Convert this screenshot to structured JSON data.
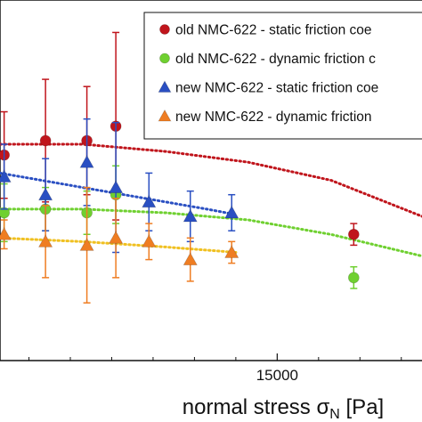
{
  "chart_data": {
    "type": "scatter",
    "xlabel": "normal stress σ",
    "xlabel_subscript": "N",
    "xlabel_unit": "[Pa]",
    "x_ticks": [
      {
        "value": 15000,
        "label": "15000"
      }
    ],
    "xlim": [
      8300,
      18500
    ],
    "ylim": [
      0.0,
      1.0
    ],
    "grid": false,
    "legend_position": "top-right",
    "series": [
      {
        "name": "old NMC-622 - static friction coe",
        "marker": "circle",
        "color": "#c0151c",
        "points": [
          {
            "x": 8400,
            "y": 0.57,
            "err": 0.12
          },
          {
            "x": 9400,
            "y": 0.61,
            "err": 0.17
          },
          {
            "x": 10400,
            "y": 0.61,
            "err": 0.15
          },
          {
            "x": 11100,
            "y": 0.65,
            "err": 0.26
          },
          {
            "x": 16850,
            "y": 0.35,
            "err": 0.03
          }
        ]
      },
      {
        "name": "old NMC-622 - dynamic friction c",
        "marker": "circle",
        "color": "#6fd030",
        "points": [
          {
            "x": 8400,
            "y": 0.41,
            "err": 0.08
          },
          {
            "x": 9400,
            "y": 0.42,
            "err": 0.06
          },
          {
            "x": 10400,
            "y": 0.41,
            "err": 0.06
          },
          {
            "x": 11100,
            "y": 0.46,
            "err": 0.08
          },
          {
            "x": 16850,
            "y": 0.23,
            "err": 0.03
          }
        ]
      },
      {
        "name": "new NMC-622 - static friction coe",
        "marker": "triangle",
        "color": "#2a4fc2",
        "points": [
          {
            "x": 8400,
            "y": 0.51,
            "err": 0.09
          },
          {
            "x": 9400,
            "y": 0.46,
            "err": 0.1
          },
          {
            "x": 10400,
            "y": 0.55,
            "err": 0.12
          },
          {
            "x": 11100,
            "y": 0.48,
            "err": 0.18
          },
          {
            "x": 11900,
            "y": 0.44,
            "err": 0.08
          },
          {
            "x": 12900,
            "y": 0.4,
            "err": 0.07
          },
          {
            "x": 13900,
            "y": 0.41,
            "err": 0.05
          }
        ]
      },
      {
        "name": "new NMC-622 - dynamic friction",
        "marker": "triangle",
        "color": "#ef7d22",
        "points": [
          {
            "x": 8400,
            "y": 0.35,
            "err": 0.04
          },
          {
            "x": 9400,
            "y": 0.33,
            "err": 0.1
          },
          {
            "x": 10400,
            "y": 0.32,
            "err": 0.16
          },
          {
            "x": 11100,
            "y": 0.34,
            "err": 0.11
          },
          {
            "x": 11900,
            "y": 0.33,
            "err": 0.05
          },
          {
            "x": 12900,
            "y": 0.28,
            "err": 0.06
          },
          {
            "x": 13900,
            "y": 0.3,
            "err": 0.03
          }
        ]
      }
    ],
    "fit_curves": [
      {
        "color": "#c0151c",
        "x": [
          8300,
          10300,
          12300,
          14300,
          16300,
          18500
        ],
        "y": [
          0.6,
          0.6,
          0.58,
          0.55,
          0.5,
          0.4
        ]
      },
      {
        "color": "#2a4fc2",
        "x": [
          8300,
          9300,
          10300,
          11300,
          12300,
          13300,
          14000
        ],
        "y": [
          0.52,
          0.5,
          0.48,
          0.46,
          0.44,
          0.42,
          0.405
        ]
      },
      {
        "color": "#6fd030",
        "x": [
          8300,
          10300,
          12300,
          14300,
          16300,
          18500
        ],
        "y": [
          0.42,
          0.42,
          0.41,
          0.39,
          0.35,
          0.29
        ]
      },
      {
        "color": "#f0c020",
        "x": [
          8300,
          10300,
          12300,
          14000
        ],
        "y": [
          0.34,
          0.33,
          0.315,
          0.3
        ]
      }
    ]
  }
}
